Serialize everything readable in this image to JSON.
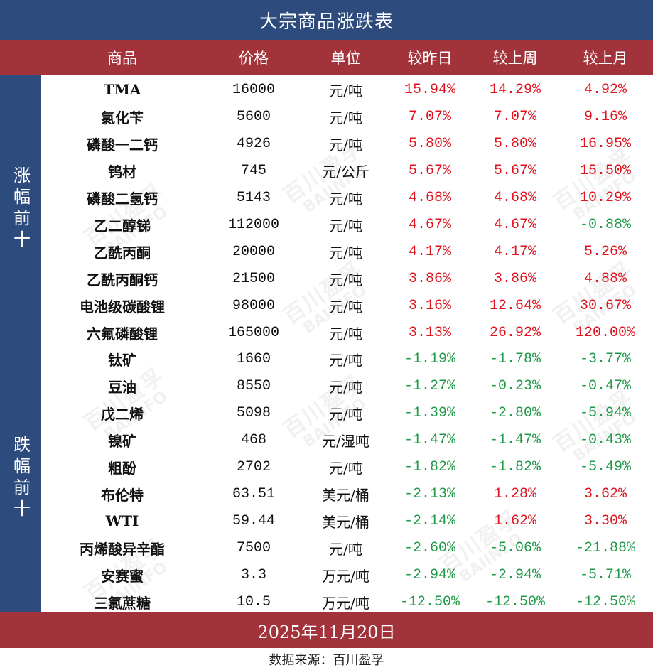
{
  "title": "大宗商品涨跌表",
  "headers": {
    "name": "商品",
    "price": "价格",
    "unit": "单位",
    "day": "较昨日",
    "week": "较上周",
    "month": "较上月"
  },
  "groups": {
    "rise": "涨幅前十",
    "fall": "跌幅前十"
  },
  "watermark": {
    "cn": "百川盈孚",
    "en": "BAIINFO"
  },
  "rows": [
    {
      "name": "TMA",
      "price": "16000",
      "unit": "元/吨",
      "day": "15.94%",
      "week": "14.29%",
      "month": "4.92%"
    },
    {
      "name": "氯化苄",
      "price": "5600",
      "unit": "元/吨",
      "day": "7.07%",
      "week": "7.07%",
      "month": "9.16%"
    },
    {
      "name": "磷酸一二钙",
      "price": "4926",
      "unit": "元/吨",
      "day": "5.80%",
      "week": "5.80%",
      "month": "16.95%"
    },
    {
      "name": "钨材",
      "price": "745",
      "unit": "元/公斤",
      "day": "5.67%",
      "week": "5.67%",
      "month": "15.50%"
    },
    {
      "name": "磷酸二氢钙",
      "price": "5143",
      "unit": "元/吨",
      "day": "4.68%",
      "week": "4.68%",
      "month": "10.29%"
    },
    {
      "name": "乙二醇锑",
      "price": "112000",
      "unit": "元/吨",
      "day": "4.67%",
      "week": "4.67%",
      "month": "-0.88%"
    },
    {
      "name": "乙酰丙酮",
      "price": "20000",
      "unit": "元/吨",
      "day": "4.17%",
      "week": "4.17%",
      "month": "5.26%"
    },
    {
      "name": "乙酰丙酮钙",
      "price": "21500",
      "unit": "元/吨",
      "day": "3.86%",
      "week": "3.86%",
      "month": "4.88%"
    },
    {
      "name": "电池级碳酸锂",
      "price": "98000",
      "unit": "元/吨",
      "day": "3.16%",
      "week": "12.64%",
      "month": "30.67%"
    },
    {
      "name": "六氟磷酸锂",
      "price": "165000",
      "unit": "元/吨",
      "day": "3.13%",
      "week": "26.92%",
      "month": "120.00%"
    },
    {
      "name": "钛矿",
      "price": "1660",
      "unit": "元/吨",
      "day": "-1.19%",
      "week": "-1.78%",
      "month": "-3.77%"
    },
    {
      "name": "豆油",
      "price": "8550",
      "unit": "元/吨",
      "day": "-1.27%",
      "week": "-0.23%",
      "month": "-0.47%"
    },
    {
      "name": "戊二烯",
      "price": "5098",
      "unit": "元/吨",
      "day": "-1.39%",
      "week": "-2.80%",
      "month": "-5.94%"
    },
    {
      "name": "镍矿",
      "price": "468",
      "unit": "元/湿吨",
      "day": "-1.47%",
      "week": "-1.47%",
      "month": "-0.43%"
    },
    {
      "name": "粗酚",
      "price": "2702",
      "unit": "元/吨",
      "day": "-1.82%",
      "week": "-1.82%",
      "month": "-5.49%"
    },
    {
      "name": "布伦特",
      "price": "63.51",
      "unit": "美元/桶",
      "day": "-2.13%",
      "week": "1.28%",
      "month": "3.62%"
    },
    {
      "name": "WTI",
      "price": "59.44",
      "unit": "美元/桶",
      "day": "-2.14%",
      "week": "1.62%",
      "month": "3.30%"
    },
    {
      "name": "丙烯酸异辛酯",
      "price": "7500",
      "unit": "元/吨",
      "day": "-2.60%",
      "week": "-5.06%",
      "month": "-21.88%"
    },
    {
      "name": "安赛蜜",
      "price": "3.3",
      "unit": "万元/吨",
      "day": "-2.94%",
      "week": "-2.94%",
      "month": "-5.71%"
    },
    {
      "name": "三氯蔗糖",
      "price": "10.5",
      "unit": "万元/吨",
      "day": "-12.50%",
      "week": "-12.50%",
      "month": "-12.50%"
    }
  ],
  "date": "2025年11月20日",
  "source": "数据来源：百川盈孚",
  "colors": {
    "navy": "#2d4b7c",
    "red_band": "#a3333b",
    "rise": "#e0141e",
    "fall": "#1f9a48"
  }
}
